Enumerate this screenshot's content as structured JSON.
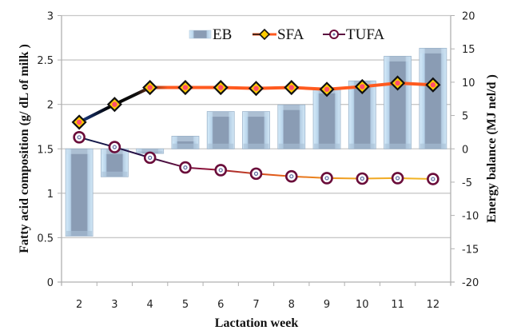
{
  "chart_data": {
    "type": "bar+line",
    "title": "",
    "xlabel": "Lactation week",
    "ylabel_left": "Fatty acid composition (g/ dL of milk )",
    "ylabel_right": "Energy balance (MJ nel/d )",
    "categories": [
      "2",
      "3",
      "4",
      "5",
      "6",
      "7",
      "8",
      "9",
      "10",
      "11",
      "12"
    ],
    "y_left": {
      "range": [
        0,
        3
      ],
      "ticks": [
        "0",
        "0.5",
        "1",
        "1.5",
        "2",
        "2.5",
        "3"
      ],
      "tick_values": [
        0,
        0.5,
        1,
        1.5,
        2,
        2.5,
        3
      ]
    },
    "y_right": {
      "range": [
        -20,
        20
      ],
      "ticks": [
        "-20",
        "-15",
        "-10",
        "-5",
        "0",
        "5",
        "10",
        "15",
        "20"
      ],
      "tick_values": [
        -20,
        -15,
        -10,
        -5,
        0,
        5,
        10,
        15,
        20
      ]
    },
    "grid": "horizontal",
    "legend": {
      "position": "top-center",
      "entries": [
        "EB",
        "SFA",
        "TUFA"
      ]
    },
    "series": [
      {
        "name": "EB",
        "type": "bar",
        "axis": "right",
        "color": "#8fa3bd",
        "values": [
          -13.1,
          -4.2,
          -0.7,
          1.9,
          5.6,
          5.6,
          6.6,
          9.1,
          10.2,
          13.9,
          15.1
        ]
      },
      {
        "name": "SFA",
        "type": "line",
        "axis": "left",
        "color": "#ff5a1f",
        "marker": "diamond",
        "marker_fill": "#ffcc00",
        "marker_center": "#ff4f6a",
        "values": [
          1.8,
          2.0,
          2.19,
          2.19,
          2.19,
          2.18,
          2.19,
          2.17,
          2.2,
          2.24,
          2.22
        ]
      },
      {
        "name": "TUFA",
        "type": "line",
        "axis": "left",
        "color": "#e6a020",
        "marker": "circle",
        "marker_stroke": "#6a0d3a",
        "values": [
          1.63,
          1.52,
          1.4,
          1.29,
          1.26,
          1.22,
          1.19,
          1.17,
          1.165,
          1.17,
          1.16
        ]
      }
    ]
  }
}
